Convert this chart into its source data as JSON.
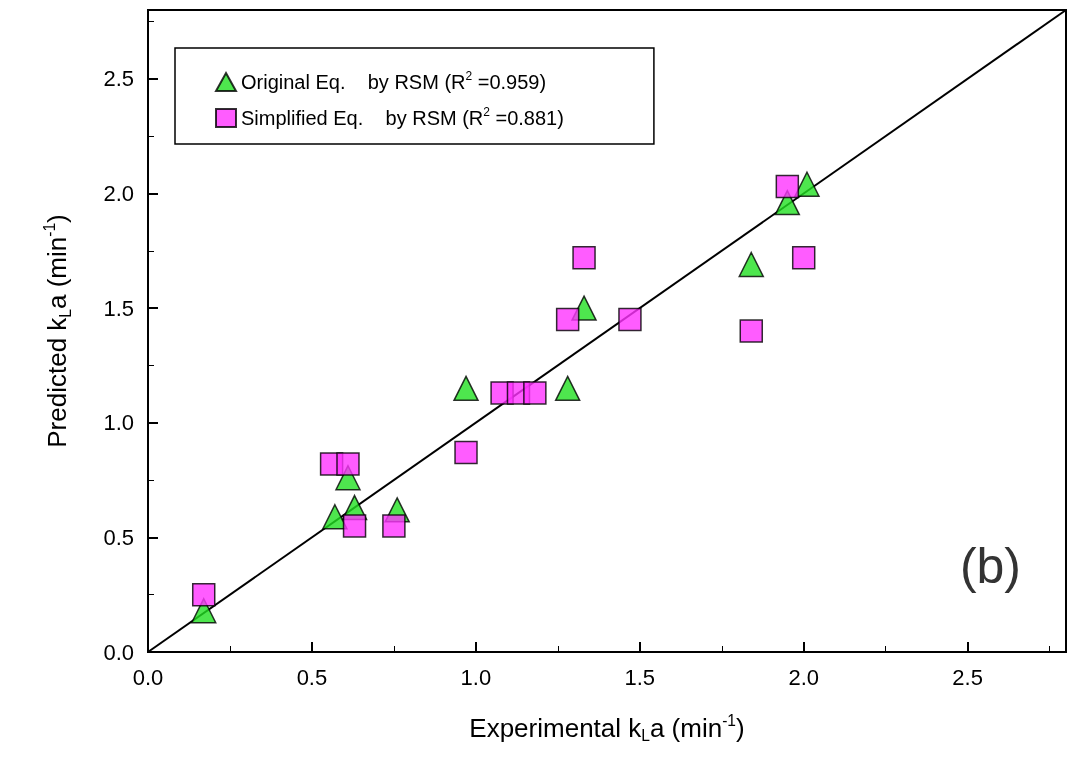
{
  "chart_data": {
    "type": "scatter",
    "xlabel": "Experimental k$_{L}$a (min$^{-1}$)",
    "ylabel": "Predicted k$_{L}$a (min$^{-1}$)",
    "annotations": [
      "(b)"
    ],
    "xlim": [
      0,
      2.8
    ],
    "ylim": [
      0,
      2.8
    ],
    "xticks": [
      {
        "value": 0,
        "label": "0.0"
      },
      {
        "value": 0.5,
        "label": "0.5"
      },
      {
        "value": 1,
        "label": "1.0"
      },
      {
        "value": 1.5,
        "label": "1.5"
      },
      {
        "value": 2,
        "label": "2.0"
      },
      {
        "value": 2.5,
        "label": "2.5"
      }
    ],
    "yticks": [
      {
        "value": 0,
        "label": "0.0"
      },
      {
        "value": 0.5,
        "label": "0.5"
      },
      {
        "value": 1,
        "label": "1.0"
      },
      {
        "value": 1.5,
        "label": "1.5"
      },
      {
        "value": 2,
        "label": "2.0"
      },
      {
        "value": 2.5,
        "label": "2.5"
      }
    ],
    "grid": false,
    "legend": "top left",
    "series": [
      {
        "type": "line",
        "color": "#000000",
        "marker": "none",
        "x": [
          0,
          2.8
        ],
        "values": [
          0,
          2.8
        ]
      },
      {
        "name": "Original Eq.    by RSM (R$^{2}$ =0.959)",
        "marker": "triangle",
        "color": "#22e022",
        "x": [
          0.17,
          0.57,
          0.61,
          0.63,
          0.76,
          0.97,
          1.08,
          1.12,
          1.28,
          1.33,
          1.47,
          1.84,
          1.95,
          2.01
        ],
        "values": [
          0.18,
          0.59,
          0.76,
          0.63,
          0.62,
          1.15,
          null,
          null,
          1.15,
          1.5,
          null,
          1.69,
          1.96,
          2.04
        ]
      },
      {
        "name": "Simplified Eq.    by RSM (R$^{2}$ =0.881)",
        "marker": "square",
        "color": "#ff33ff",
        "x": [
          0.17,
          0.56,
          0.61,
          0.63,
          0.75,
          0.97,
          1.08,
          1.13,
          1.18,
          1.28,
          1.33,
          1.47,
          1.84,
          1.95,
          2.0
        ],
        "values": [
          0.25,
          0.82,
          0.82,
          0.55,
          0.55,
          0.87,
          1.13,
          1.13,
          1.13,
          1.45,
          1.72,
          1.45,
          1.4,
          2.03,
          1.72
        ]
      }
    ]
  }
}
